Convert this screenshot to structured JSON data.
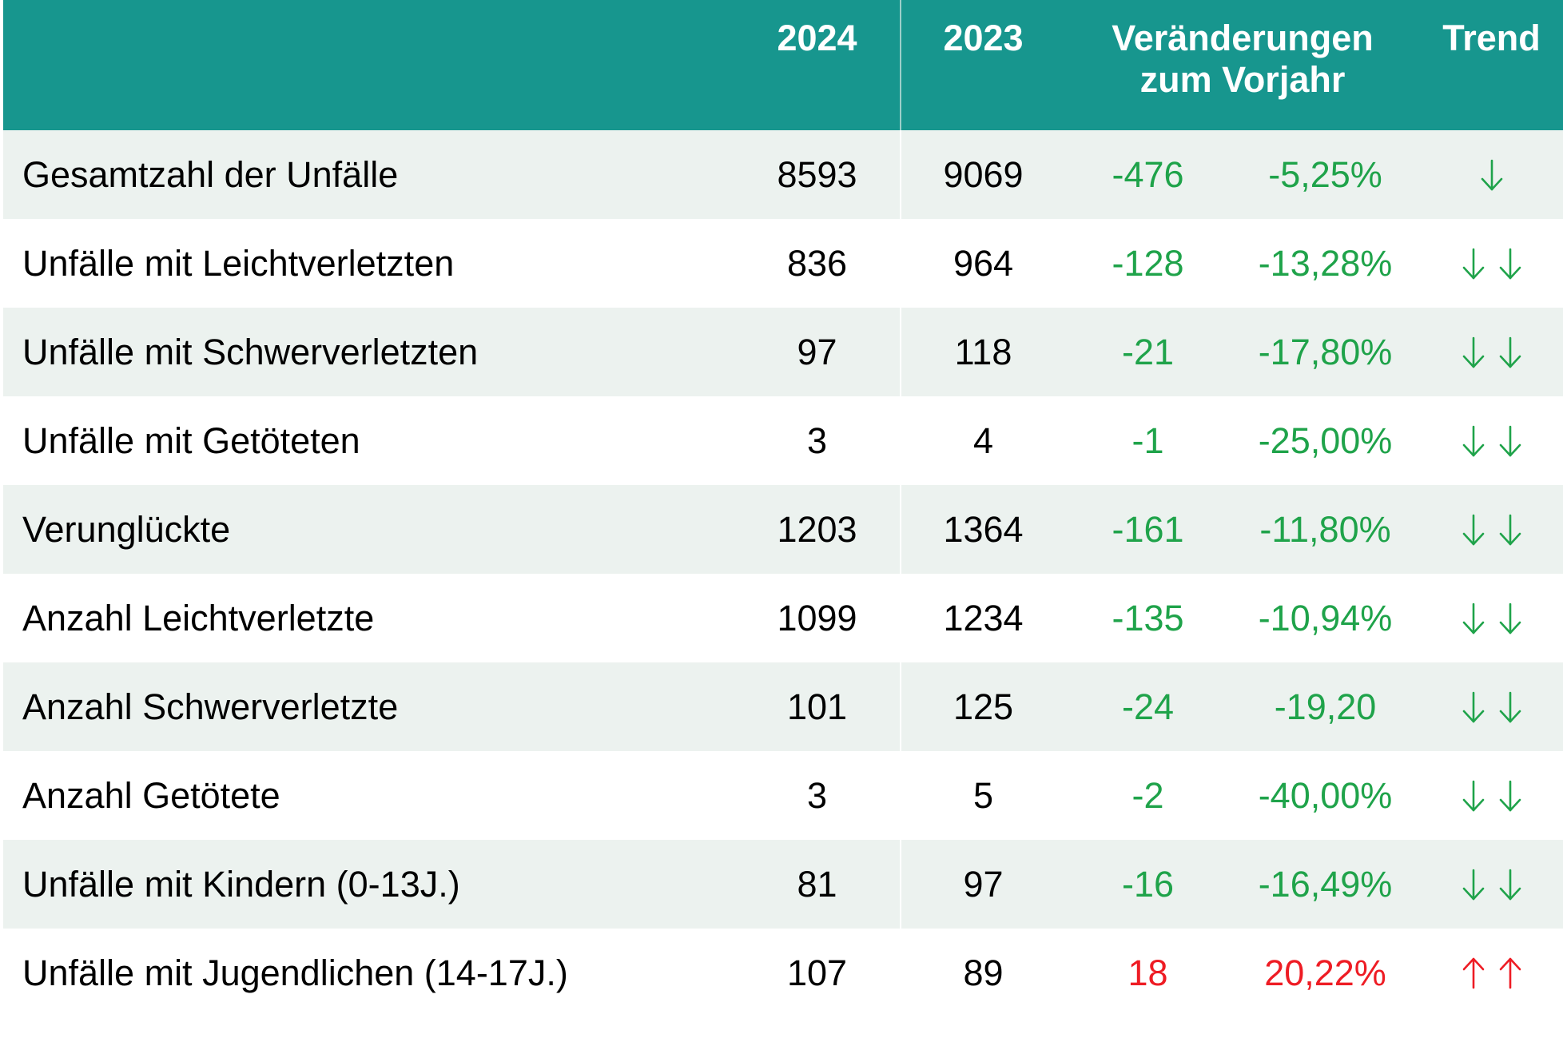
{
  "header": {
    "year_current": "2024",
    "year_previous": "2023",
    "change_line1": "Veränderungen",
    "change_line2": "zum Vorjahr",
    "trend": "Trend"
  },
  "colors": {
    "header_bg": "#17968e",
    "row_alt_bg": "#ecf2ef",
    "decrease": "#1fa34a",
    "increase": "#ee1c24"
  },
  "rows": [
    {
      "label": "Gesamtzahl der Unfälle",
      "v2024": "8593",
      "v2023": "9069",
      "abs": "-476",
      "pct": "-5,25%",
      "trend": "down",
      "trend_count": 1
    },
    {
      "label": "Unfälle mit Leichtverletzten",
      "v2024": "836",
      "v2023": "964",
      "abs": "-128",
      "pct": "-13,28%",
      "trend": "down",
      "trend_count": 2
    },
    {
      "label": "Unfälle mit Schwerverletzten",
      "v2024": "97",
      "v2023": "118",
      "abs": "-21",
      "pct": "-17,80%",
      "trend": "down",
      "trend_count": 2
    },
    {
      "label": "Unfälle mit Getöteten",
      "v2024": "3",
      "v2023": "4",
      "abs": "-1",
      "pct": "-25,00%",
      "trend": "down",
      "trend_count": 2
    },
    {
      "label": "Verunglückte",
      "v2024": "1203",
      "v2023": "1364",
      "abs": "-161",
      "pct": "-11,80%",
      "trend": "down",
      "trend_count": 2
    },
    {
      "label": "Anzahl Leichtverletzte",
      "v2024": "1099",
      "v2023": "1234",
      "abs": "-135",
      "pct": "-10,94%",
      "trend": "down",
      "trend_count": 2
    },
    {
      "label": "Anzahl Schwerverletzte",
      "v2024": "101",
      "v2023": "125",
      "abs": "-24",
      "pct": "-19,20",
      "trend": "down",
      "trend_count": 2
    },
    {
      "label": "Anzahl Getötete",
      "v2024": "3",
      "v2023": "5",
      "abs": "-2",
      "pct": "-40,00%",
      "trend": "down",
      "trend_count": 2
    },
    {
      "label": "Unfälle mit Kindern (0-13J.)",
      "v2024": "81",
      "v2023": "97",
      "abs": "-16",
      "pct": "-16,49%",
      "trend": "down",
      "trend_count": 2
    },
    {
      "label": "Unfälle mit Jugendlichen (14-17J.)",
      "v2024": "107",
      "v2023": "89",
      "abs": "18",
      "pct": "20,22%",
      "trend": "up",
      "trend_count": 2
    }
  ]
}
